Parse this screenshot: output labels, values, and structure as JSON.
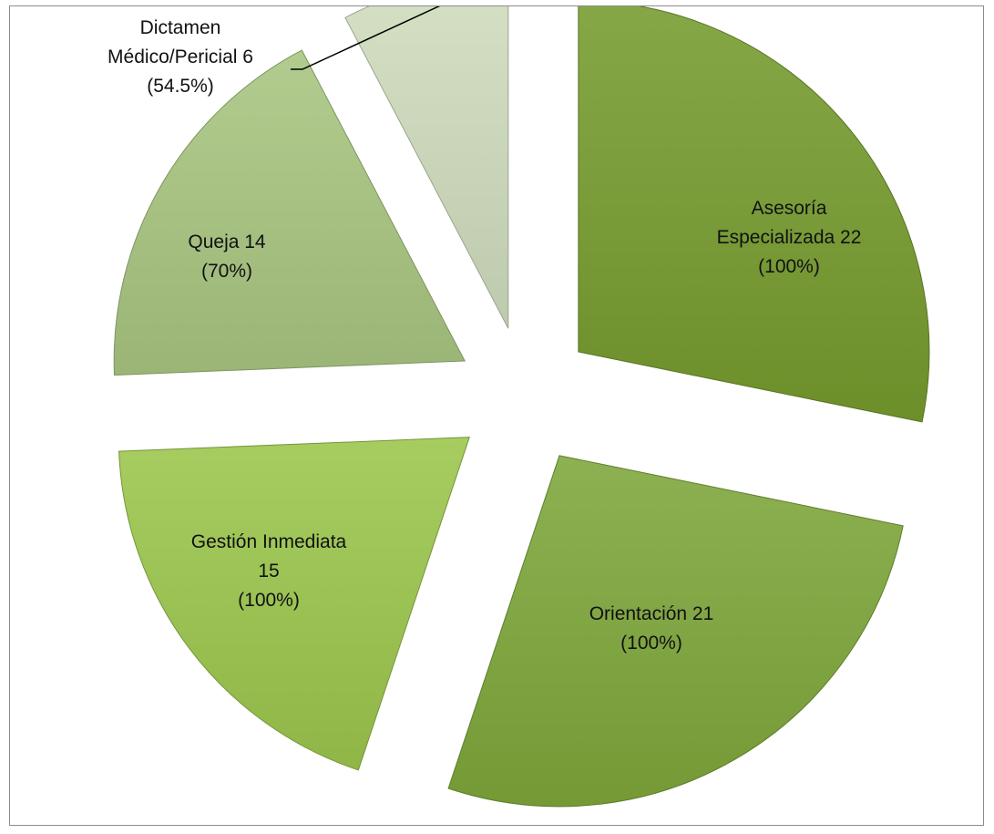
{
  "chart_data": {
    "type": "pie",
    "exploded": true,
    "title": "",
    "slices": [
      {
        "category": "Asesoría Especializada",
        "value": 22,
        "percent_label": "(100%)",
        "label_lines": [
          "Asesoría",
          "Especializada 22",
          "(100%)"
        ],
        "color": "#769b2e"
      },
      {
        "category": "Orientación",
        "value": 21,
        "percent_label": "(100%)",
        "label_lines": [
          "Orientación 21",
          "(100%)"
        ],
        "color": "#7ea63a"
      },
      {
        "category": "Gestión Inmediata",
        "value": 15,
        "percent_label": "(100%)",
        "label_lines": [
          "Gestión Inmediata",
          "15",
          "(100%)"
        ],
        "color": "#9bc64c"
      },
      {
        "category": "Queja",
        "value": 14,
        "percent_label": "(70%)",
        "label_lines": [
          "Queja 14",
          "(70%)"
        ],
        "color": "#a8c580"
      },
      {
        "category": "Dictamen Médico/Pericial",
        "value": 6,
        "percent_label": "(54.5%)",
        "label_lines": [
          "Dictamen",
          "Médico/Pericial 6",
          "(54.5%)"
        ],
        "color": "#cfdcbd"
      }
    ]
  }
}
